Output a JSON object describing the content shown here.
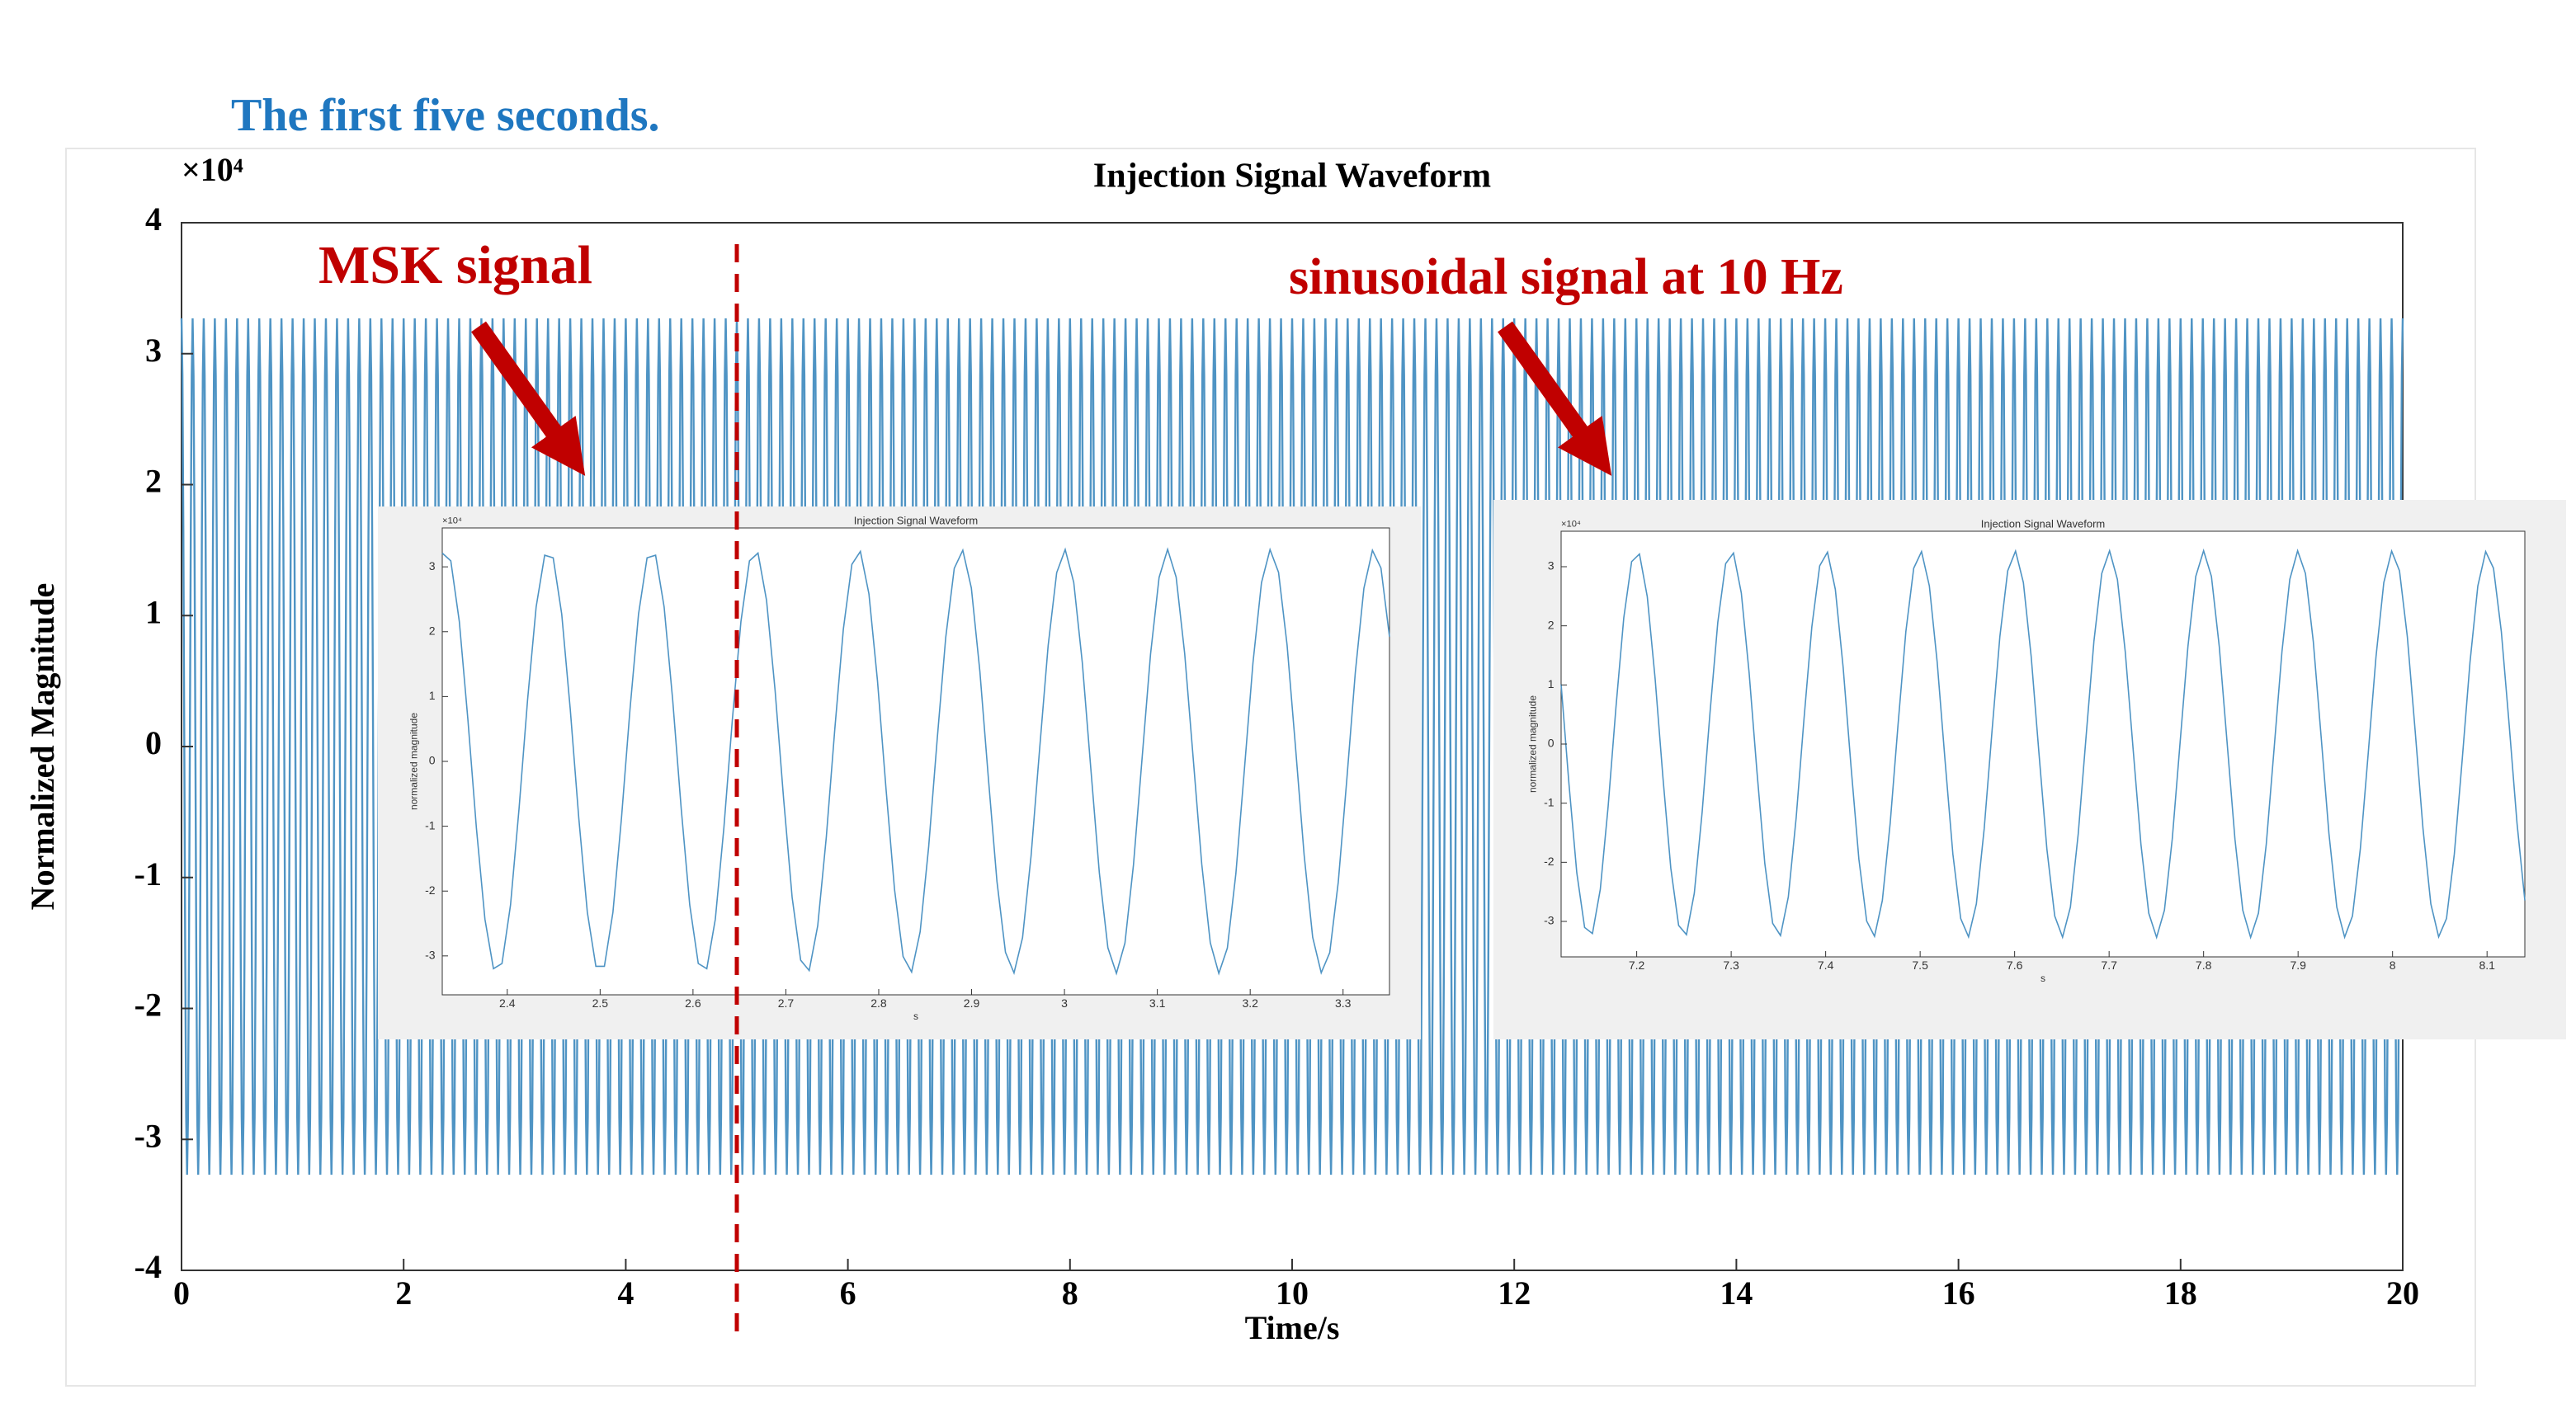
{
  "heading": "The first five seconds.",
  "annotations": {
    "msk": "MSK signal",
    "sine": "sinusoidal signal at 10 Hz",
    "divider_x": 5
  },
  "chart_data": [
    {
      "type": "line",
      "title": "Injection Signal Waveform",
      "xlabel": "Time/s",
      "ylabel": "Normalized Magnitude",
      "exponent_label": "×10⁴",
      "xlim": [
        0,
        20
      ],
      "xticks": [
        0,
        2,
        4,
        6,
        8,
        10,
        12,
        14,
        16,
        18,
        20
      ],
      "ylim": [
        -4,
        4
      ],
      "yticks": [
        -4,
        -3,
        -2,
        -1,
        0,
        1,
        2,
        3,
        4
      ],
      "series": [
        {
          "color": "#4f94c4",
          "amplitude": 3.27,
          "frequency": 10
        }
      ]
    },
    {
      "type": "line",
      "title": "Injection Signal Waveform",
      "xlabel": "s",
      "ylabel": "normalized magnitude",
      "exponent_label": "×10⁴",
      "xlim": [
        2.33,
        3.35
      ],
      "xticks": [
        2.4,
        2.5,
        2.6,
        2.7,
        2.8,
        2.9,
        3,
        3.1,
        3.2,
        3.3
      ],
      "ylim": [
        -3.6,
        3.6
      ],
      "yticks": [
        -3,
        -2,
        -1,
        0,
        1,
        2,
        3
      ],
      "series": [
        {
          "color": "#4f94c4",
          "amplitude": 3.27,
          "frequency": 9
        }
      ]
    },
    {
      "type": "line",
      "title": "Injection Signal Waveform",
      "xlabel": "s",
      "ylabel": "normalized magnitude",
      "exponent_label": "×10⁴",
      "xlim": [
        7.12,
        8.14
      ],
      "xticks": [
        7.2,
        7.3,
        7.4,
        7.5,
        7.6,
        7.7,
        7.8,
        7.9,
        8,
        8.1
      ],
      "ylim": [
        -3.6,
        3.6
      ],
      "yticks": [
        -3,
        -2,
        -1,
        0,
        1,
        2,
        3
      ],
      "series": [
        {
          "color": "#4f94c4",
          "amplitude": 3.27,
          "frequency": 10
        }
      ]
    }
  ]
}
